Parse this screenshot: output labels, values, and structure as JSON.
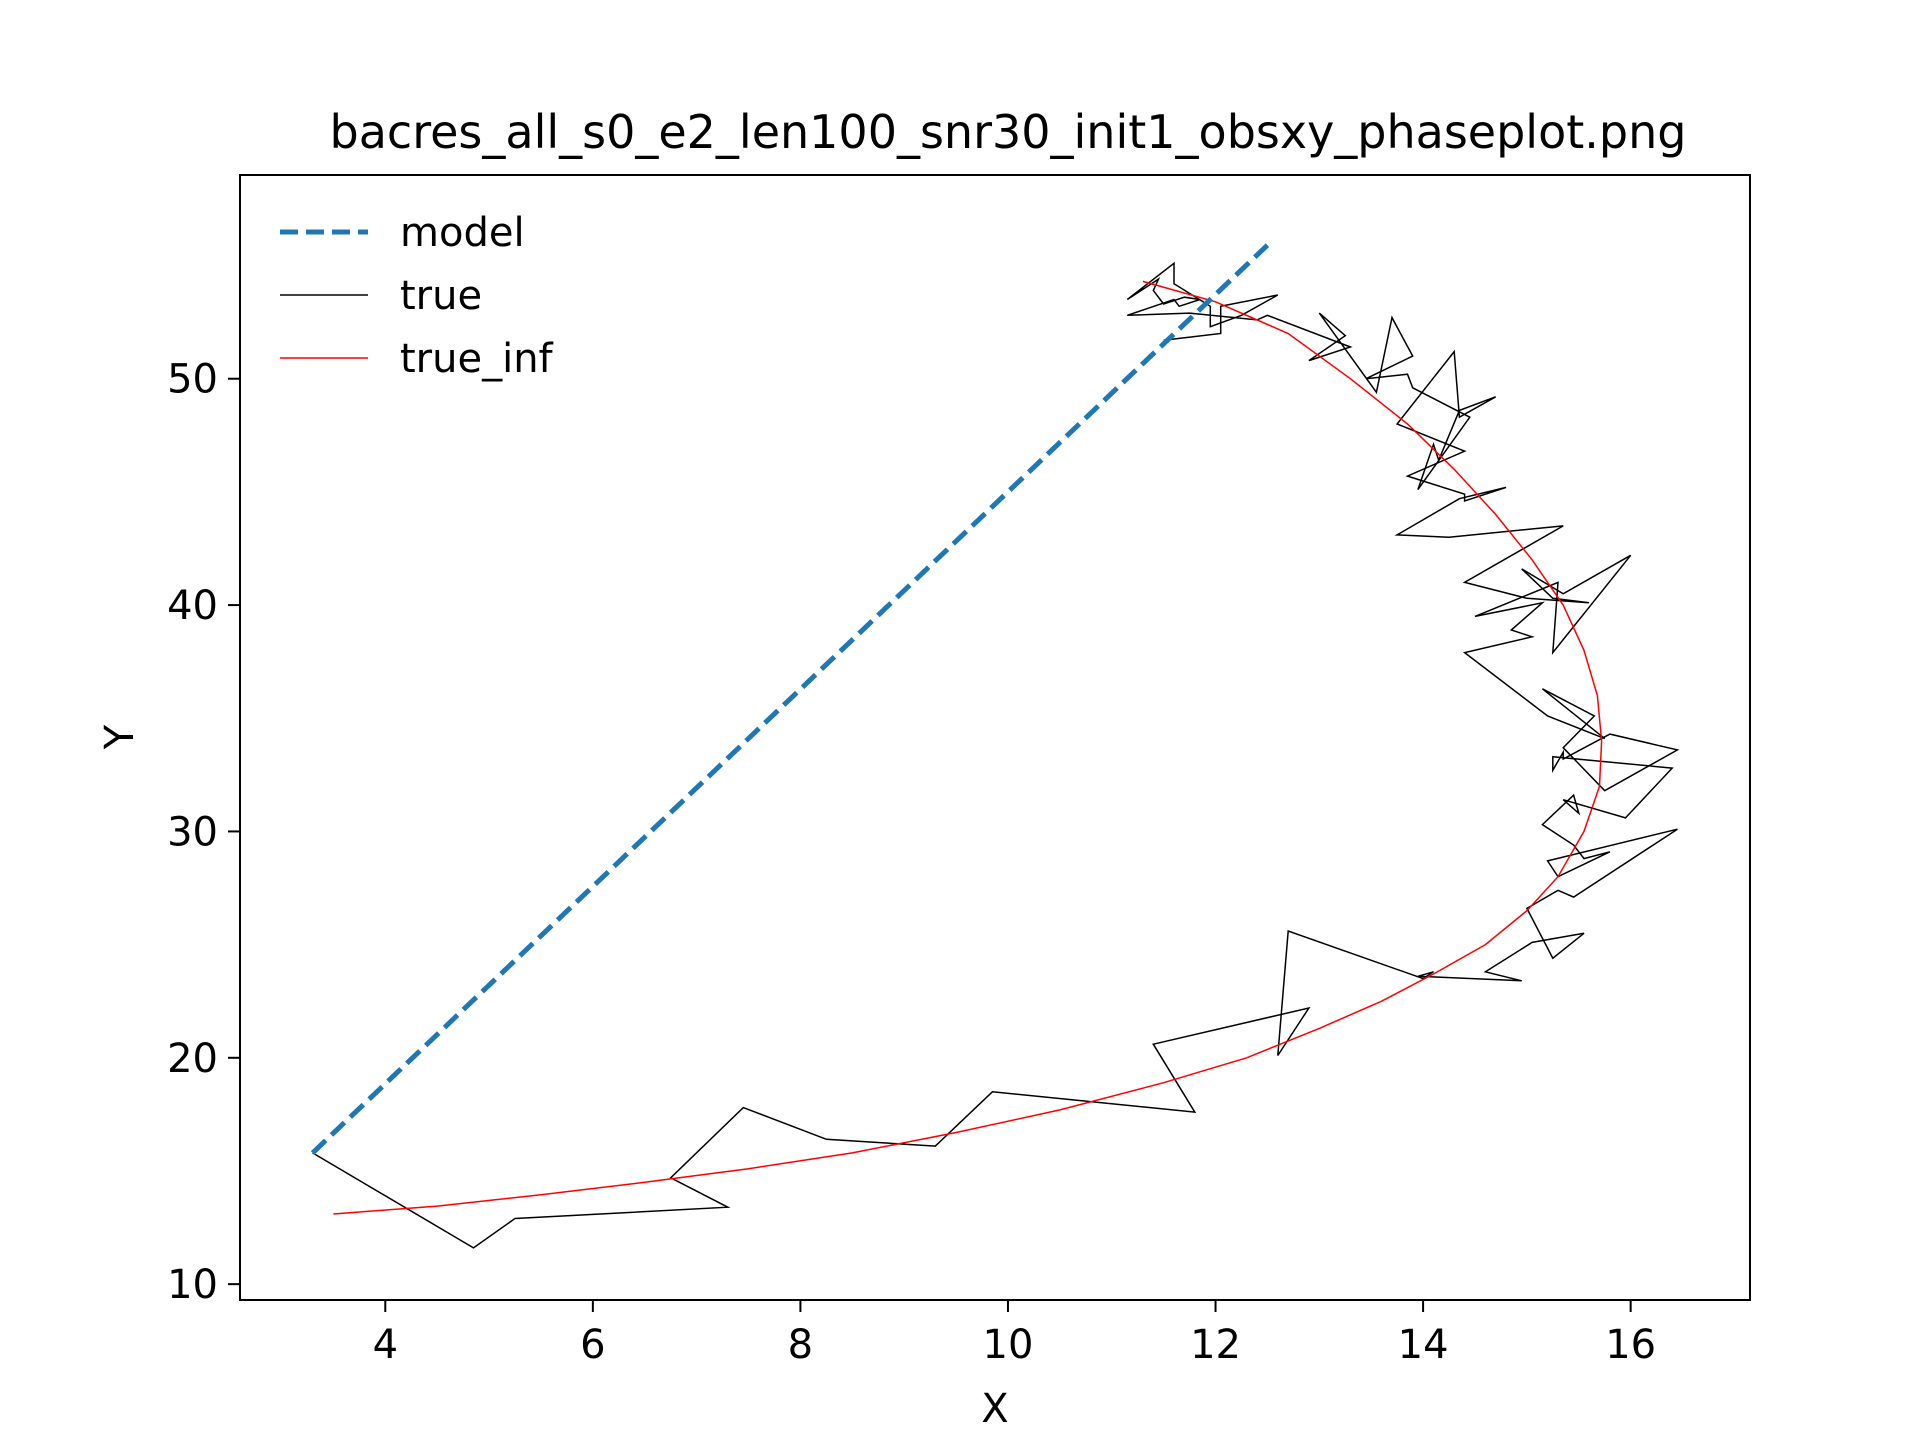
{
  "chart_data": {
    "type": "line",
    "title": "bacres_all_s0_e2_len100_snr30_init1_obsxy_phaseplot.png",
    "xlabel": "X",
    "ylabel": "Y",
    "xlim": [
      2.6,
      17.15
    ],
    "ylim": [
      9.3,
      59.0
    ],
    "xticks": [
      4,
      6,
      8,
      10,
      12,
      14,
      16
    ],
    "yticks": [
      10,
      20,
      30,
      40,
      50
    ],
    "grid": false,
    "legend": "upper left",
    "series": [
      {
        "name": "model",
        "color": "#1f77b4",
        "style": "dashed",
        "x": [
          3.3,
          12.5
        ],
        "y": [
          15.8,
          55.9
        ]
      },
      {
        "name": "true",
        "color": "#000000",
        "style": "solid",
        "x": [
          3.3,
          4.85,
          5.25,
          7.3,
          6.75,
          7.45,
          8.25,
          9.3,
          9.85,
          11.8,
          11.4,
          12.9,
          12.6,
          12.7,
          14.0,
          14.1,
          13.95,
          14.95,
          14.6,
          15.05,
          15.55,
          15.25,
          15.0,
          15.3,
          15.45,
          16.45,
          15.2,
          15.3,
          15.8,
          15.55,
          15.45,
          15.15,
          15.45,
          15.5,
          15.35,
          15.95,
          16.4,
          15.25,
          15.25,
          15.35,
          15.35,
          15.8,
          16.45,
          15.75,
          15.35,
          15.65,
          15.15,
          15.75,
          15.2,
          14.4,
          15.05,
          14.85,
          15.15,
          14.5,
          15.3,
          15.25,
          16.0,
          15.35,
          14.95,
          15.25,
          15.6,
          15.0,
          14.4,
          15.35,
          14.25,
          13.75,
          14.35,
          14.8,
          14.4,
          14.4,
          13.85,
          14.4,
          13.75,
          14.3,
          14.35,
          14.7,
          14.35,
          14.15,
          14.1,
          13.95,
          14.45,
          13.9,
          13.85,
          13.45,
          13.9,
          13.7,
          13.55,
          13.0,
          13.25,
          12.9,
          13.3,
          12.5,
          12.4,
          11.75,
          11.15,
          11.6,
          11.65,
          11.85,
          11.7,
          11.5,
          11.4,
          11.45,
          11.15,
          11.6,
          11.6,
          11.95,
          11.95,
          12.25,
          12.6,
          12.05,
          12.05,
          11.5,
          11.5
        ],
        "y": [
          15.8,
          11.6,
          12.9,
          13.4,
          14.7,
          17.8,
          16.4,
          16.1,
          18.5,
          17.6,
          20.6,
          22.2,
          20.1,
          25.6,
          23.5,
          23.8,
          23.6,
          23.4,
          23.8,
          25.1,
          25.5,
          24.4,
          26.6,
          27.4,
          27.1,
          30.1,
          28.7,
          28.0,
          29.1,
          28.8,
          29.4,
          30.3,
          31.6,
          30.8,
          31.4,
          30.6,
          32.8,
          33.3,
          32.7,
          33.5,
          33.2,
          34.3,
          33.6,
          31.8,
          33.7,
          35.1,
          36.3,
          34.1,
          35.1,
          37.9,
          38.6,
          38.9,
          40.1,
          39.5,
          41.0,
          37.9,
          42.2,
          40.5,
          41.6,
          40.3,
          40.1,
          40.3,
          41.0,
          43.5,
          43.0,
          43.1,
          44.7,
          45.2,
          44.6,
          44.9,
          45.7,
          46.8,
          48.0,
          51.2,
          48.3,
          49.2,
          48.6,
          46.4,
          47.1,
          45.1,
          48.3,
          49.6,
          50.2,
          50.0,
          51.0,
          52.7,
          49.4,
          52.9,
          51.9,
          50.8,
          51.4,
          52.8,
          52.6,
          52.9,
          52.8,
          53.5,
          53.2,
          53.5,
          53.6,
          53.3,
          53.9,
          54.4,
          53.5,
          55.1,
          54.2,
          53.2,
          52.3,
          52.8,
          53.7,
          53.2,
          52.0,
          51.7,
          51.7
        ]
      },
      {
        "name": "true_inf",
        "color": "#ff0000",
        "style": "solid",
        "x": [
          3.5,
          4.5,
          5.5,
          6.5,
          7.5,
          8.5,
          9.5,
          10.5,
          11.5,
          12.3,
          13.0,
          13.6,
          14.1,
          14.6,
          15.0,
          15.3,
          15.55,
          15.7,
          15.72,
          15.68,
          15.55,
          15.35,
          15.05,
          14.7,
          14.3,
          13.85,
          13.3,
          12.7,
          12.0,
          11.3
        ],
        "y": [
          13.1,
          13.45,
          13.95,
          14.5,
          15.1,
          15.8,
          16.7,
          17.7,
          18.9,
          20.0,
          21.3,
          22.5,
          23.7,
          25.0,
          26.5,
          28.0,
          30.0,
          32.0,
          34.0,
          36.0,
          38.0,
          40.0,
          42.0,
          44.0,
          46.0,
          48.0,
          50.0,
          52.0,
          53.4,
          54.3
        ]
      }
    ]
  }
}
